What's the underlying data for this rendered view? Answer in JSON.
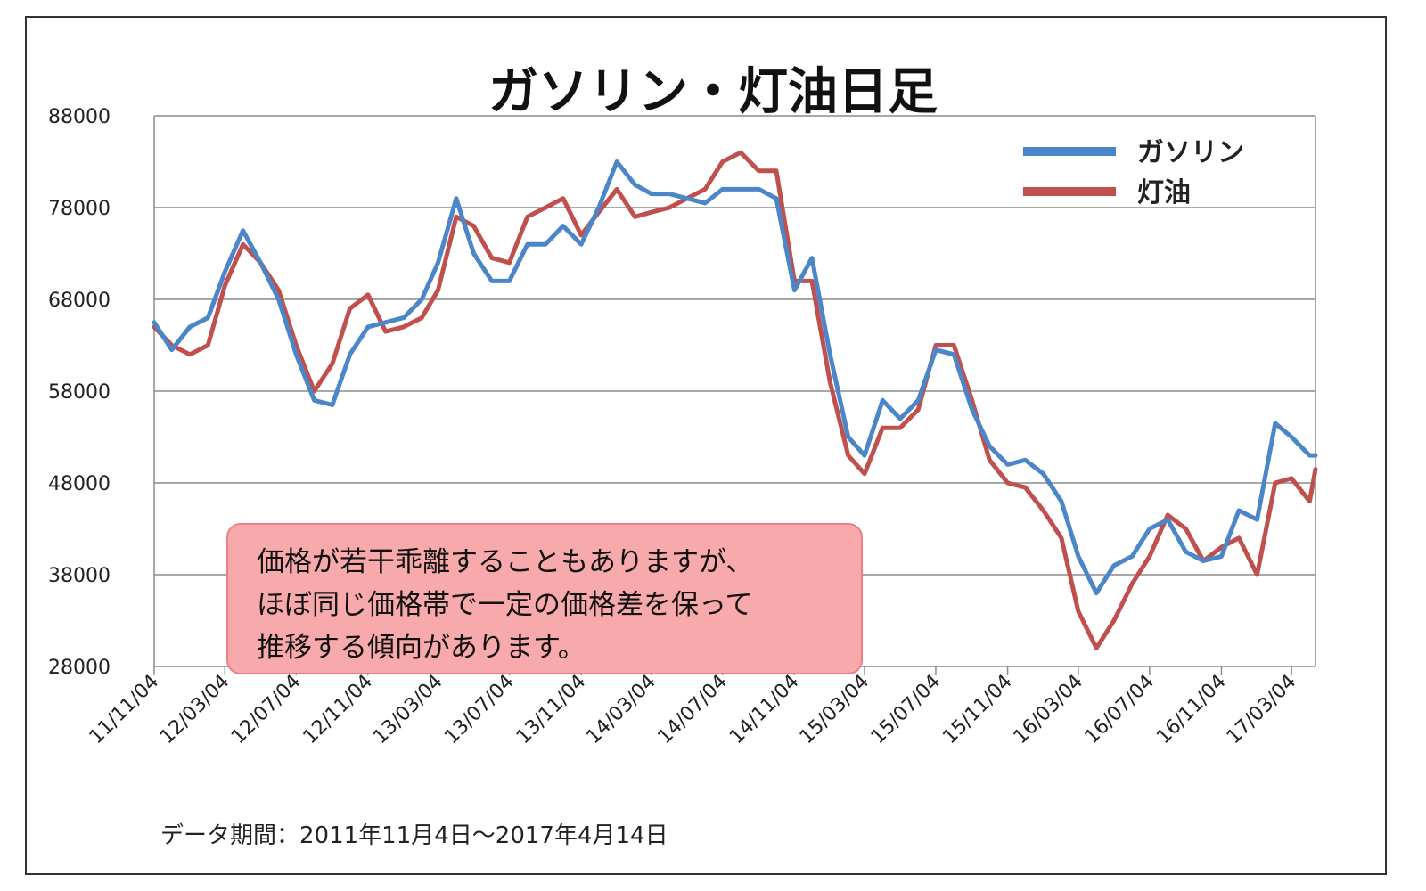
{
  "chart_data": {
    "type": "line",
    "title": "ガソリン・灯油日足",
    "ylim": [
      28000,
      88000
    ],
    "y_ticks": [
      "88000",
      "78000",
      "68000",
      "58000",
      "48000",
      "38000",
      "28000"
    ],
    "x_ticks": [
      "11/11/04",
      "12/03/04",
      "12/07/04",
      "12/11/04",
      "13/03/04",
      "13/07/04",
      "13/11/04",
      "14/03/04",
      "14/07/04",
      "14/11/04",
      "15/03/04",
      "15/07/04",
      "15/11/04",
      "16/03/04",
      "16/07/04",
      "16/11/04",
      "17/03/04"
    ],
    "x_range": [
      "2011-11-04",
      "2017-04-14"
    ],
    "grid": "horizontal",
    "legend_position": "top-right",
    "x": [
      "2011-11-04",
      "2011-12-04",
      "2012-01-04",
      "2012-02-04",
      "2012-03-04",
      "2012-04-04",
      "2012-05-04",
      "2012-06-04",
      "2012-07-04",
      "2012-08-04",
      "2012-09-04",
      "2012-10-04",
      "2012-11-04",
      "2012-12-04",
      "2013-01-04",
      "2013-02-04",
      "2013-03-04",
      "2013-04-04",
      "2013-05-04",
      "2013-06-04",
      "2013-07-04",
      "2013-08-04",
      "2013-09-04",
      "2013-10-04",
      "2013-11-04",
      "2013-12-04",
      "2014-01-04",
      "2014-02-04",
      "2014-03-04",
      "2014-04-04",
      "2014-05-04",
      "2014-06-04",
      "2014-07-04",
      "2014-08-04",
      "2014-09-04",
      "2014-10-04",
      "2014-11-04",
      "2014-12-04",
      "2015-01-04",
      "2015-02-04",
      "2015-03-04",
      "2015-04-04",
      "2015-05-04",
      "2015-06-04",
      "2015-07-04",
      "2015-08-04",
      "2015-09-04",
      "2015-10-04",
      "2015-11-04",
      "2015-12-04",
      "2016-01-04",
      "2016-02-04",
      "2016-03-04",
      "2016-04-04",
      "2016-05-04",
      "2016-06-04",
      "2016-07-04",
      "2016-08-04",
      "2016-09-04",
      "2016-10-04",
      "2016-11-04",
      "2016-12-04",
      "2017-01-04",
      "2017-02-04",
      "2017-03-04",
      "2017-04-04",
      "2017-04-14"
    ],
    "series": [
      {
        "name": "ガソリン",
        "color": "#4a86c8",
        "values": [
          65500,
          62500,
          65000,
          66000,
          71000,
          75500,
          72000,
          68000,
          62000,
          57000,
          56500,
          62000,
          65000,
          65500,
          66000,
          68000,
          72000,
          79000,
          73000,
          70000,
          70000,
          74000,
          74000,
          76000,
          74000,
          78000,
          83000,
          80500,
          79500,
          79500,
          79000,
          78500,
          80000,
          80000,
          80000,
          79000,
          69000,
          72500,
          62000,
          53000,
          51000,
          57000,
          55000,
          57000,
          62500,
          62000,
          56000,
          52000,
          50000,
          50500,
          49000,
          46000,
          40000,
          36000,
          39000,
          40000,
          43000,
          44000,
          40500,
          39500,
          40000,
          45000,
          44000,
          54500,
          53000,
          51000,
          51000
        ]
      },
      {
        "name": "灯油",
        "color": "#c0504d",
        "values": [
          65000,
          63000,
          62000,
          63000,
          69500,
          74000,
          72000,
          69000,
          63000,
          58000,
          61000,
          67000,
          68500,
          64500,
          65000,
          66000,
          69000,
          77000,
          76000,
          72500,
          72000,
          77000,
          78000,
          79000,
          75000,
          77500,
          80000,
          77000,
          77500,
          78000,
          79000,
          80000,
          83000,
          84000,
          82000,
          82000,
          70000,
          70000,
          59000,
          51000,
          49000,
          54000,
          54000,
          56000,
          63000,
          63000,
          57000,
          50500,
          48000,
          47500,
          45000,
          42000,
          34000,
          30000,
          33000,
          37000,
          40000,
          44500,
          43000,
          39500,
          41000,
          42000,
          38000,
          48000,
          48500,
          46000,
          49500
        ]
      }
    ],
    "note_lines": [
      "価格が若干乖離することもありますが、",
      "ほぼ同じ価格帯で一定の価格差を保って",
      "推移する傾向があります。"
    ],
    "period_text": "データ期間：2011年11月4日～2017年4月14日"
  }
}
